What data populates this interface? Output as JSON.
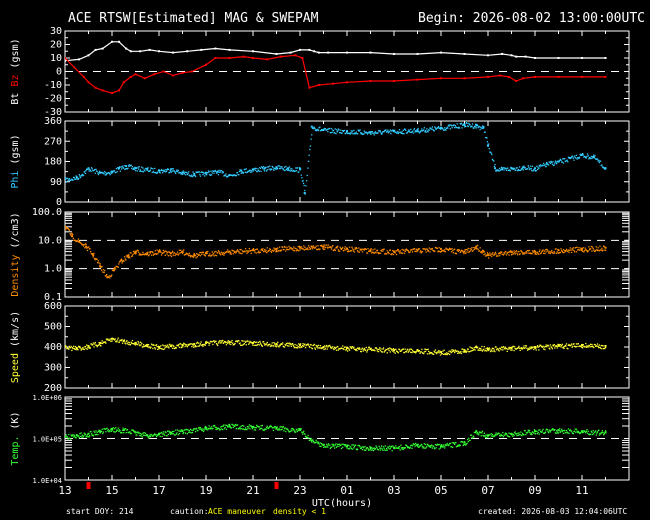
{
  "header": {
    "title": "ACE RTSW[Estimated] MAG & SWEPAM",
    "begin": "Begin: 2026-08-02 13:00:00UTC"
  },
  "footer": {
    "start_doy": "start DOY: 214",
    "caution": "caution:",
    "maneuver": "ACE maneuver",
    "density_note": "density < 1",
    "created": "created: 2026-08-03 12:04:06UTC"
  },
  "colors": {
    "background": "#000000",
    "axes": "#ffffff",
    "bt": "#ffffff",
    "bz": "#ff0000",
    "phi": "#33ccff",
    "density": "#ff8c00",
    "speed": "#ffff33",
    "temp": "#33ff33"
  },
  "chart_data": [
    {
      "type": "line",
      "panel": "mag_b",
      "ylabel_parts": [
        "Bt",
        "Bz",
        "(gsm)"
      ],
      "ylim": [
        -30,
        30
      ],
      "yticks": [
        -30,
        -20,
        -10,
        0,
        10,
        20,
        30
      ],
      "ytick_labels": [
        "-30",
        "-20",
        "-10",
        "0",
        "10",
        "20",
        "30"
      ],
      "dashed_lines": [
        0
      ],
      "series": [
        {
          "name": "Bt",
          "color": "#ffffff",
          "x": [
            0.0,
            0.6,
            1.0,
            1.3,
            1.6,
            2.0,
            2.3,
            2.6,
            2.8,
            3.2,
            3.6,
            4.0,
            4.6,
            5.2,
            5.8,
            6.4,
            7.0,
            8.0,
            9.0,
            9.6,
            10.0,
            10.4,
            10.6,
            10.8,
            11.2,
            12.0,
            13.0,
            14.0,
            15.0,
            16.0,
            17.0,
            18.0,
            18.6,
            19.0,
            19.2,
            19.6,
            20.0,
            21.0,
            22.0,
            23.0
          ],
          "y": [
            8,
            9,
            12,
            16,
            17,
            22,
            22,
            17,
            15,
            15,
            16,
            15,
            14,
            15,
            16,
            17,
            16,
            15,
            13,
            14,
            16,
            16,
            15,
            14,
            14,
            14,
            14,
            13,
            13,
            14,
            13,
            12,
            13,
            12,
            11,
            11,
            10,
            10,
            10,
            10
          ]
        },
        {
          "name": "Bz",
          "color": "#ff0000",
          "x": [
            0.0,
            0.4,
            0.8,
            1.0,
            1.3,
            1.6,
            2.0,
            2.3,
            2.5,
            2.8,
            3.0,
            3.4,
            3.8,
            4.2,
            4.6,
            5.0,
            5.4,
            6.0,
            6.4,
            7.0,
            7.6,
            8.0,
            8.6,
            9.2,
            9.8,
            10.1,
            10.4,
            10.8,
            11.4,
            12.0,
            13.0,
            14.0,
            15.0,
            16.0,
            17.0,
            18.0,
            18.5,
            18.9,
            19.2,
            19.5,
            20.0,
            21.0,
            22.0,
            23.0
          ],
          "y": [
            10,
            3,
            -4,
            -8,
            -12,
            -14,
            -16,
            -14,
            -8,
            -4,
            -2,
            -5,
            -2,
            0,
            -3,
            -1,
            0,
            5,
            10,
            10,
            11,
            10,
            9,
            11,
            12,
            10,
            -12,
            -10,
            -9,
            -8,
            -7,
            -7,
            -6,
            -5,
            -5,
            -4,
            -3,
            -4,
            -7,
            -5,
            -4,
            -4,
            -4,
            -4
          ]
        }
      ]
    },
    {
      "type": "scatter",
      "panel": "phi",
      "ylabel_parts": [
        "Phi",
        "(gsm)"
      ],
      "ylim": [
        0,
        360
      ],
      "yticks": [
        0,
        90,
        180,
        270,
        360
      ],
      "ytick_labels": [
        "0",
        "90",
        "180",
        "270",
        "360"
      ],
      "series": [
        {
          "name": "Phi",
          "color": "#33ccff",
          "x": [
            0.0,
            0.5,
            1.0,
            1.5,
            2.0,
            2.3,
            2.6,
            3.0,
            3.5,
            4.0,
            4.5,
            5.0,
            5.5,
            6.0,
            6.5,
            7.0,
            7.5,
            8.0,
            8.5,
            9.0,
            9.5,
            10.0,
            10.2,
            10.5,
            11.0,
            12.0,
            13.0,
            14.0,
            15.0,
            16.0,
            17.0,
            17.5,
            17.8,
            18.0,
            18.3,
            18.6,
            19.0,
            19.5,
            20.0,
            20.5,
            21.0,
            21.5,
            22.0,
            22.5,
            23.0
          ],
          "y": [
            100,
            110,
            150,
            130,
            135,
            150,
            160,
            150,
            145,
            140,
            145,
            130,
            125,
            130,
            135,
            120,
            140,
            145,
            150,
            155,
            150,
            145,
            40,
            335,
            320,
            315,
            310,
            315,
            320,
            330,
            345,
            340,
            330,
            250,
            150,
            145,
            150,
            155,
            150,
            170,
            180,
            195,
            210,
            200,
            150
          ]
        }
      ]
    },
    {
      "type": "scatter",
      "panel": "density",
      "ylabel_parts": [
        "Density",
        "(/cm3)"
      ],
      "yscale": "log",
      "ylim": [
        0.1,
        100
      ],
      "yticks": [
        0.1,
        1,
        10,
        100
      ],
      "ytick_labels": [
        "0.1",
        "1.0",
        "10.0",
        "100.0"
      ],
      "dashed_lines": [
        1,
        10
      ],
      "series": [
        {
          "name": "Density",
          "color": "#ff8c00",
          "x": [
            0.0,
            0.3,
            0.6,
            0.9,
            1.2,
            1.5,
            1.8,
            2.1,
            2.4,
            2.7,
            3.0,
            3.5,
            4.0,
            4.5,
            5.0,
            5.5,
            6.0,
            7.0,
            8.0,
            9.0,
            10.0,
            10.5,
            11.0,
            12.0,
            13.0,
            14.0,
            15.0,
            16.0,
            17.0,
            17.5,
            17.8,
            18.0,
            18.5,
            19.0,
            20.0,
            21.0,
            22.0,
            23.0
          ],
          "y": [
            30,
            14,
            9,
            6,
            3,
            1.2,
            0.5,
            1.0,
            2,
            3,
            4,
            3.5,
            4,
            3.5,
            4,
            3,
            3.5,
            4,
            4.5,
            5,
            5.5,
            6,
            6,
            5,
            4.5,
            4,
            4.5,
            5,
            4,
            6,
            4,
            3,
            3.5,
            4,
            4,
            4.5,
            5,
            5.5
          ]
        }
      ]
    },
    {
      "type": "scatter",
      "panel": "speed",
      "ylabel_parts": [
        "Speed",
        "(km/s)"
      ],
      "ylim": [
        200,
        600
      ],
      "yticks": [
        200,
        300,
        400,
        500,
        600
      ],
      "ytick_labels": [
        "200",
        "300",
        "400",
        "500",
        "600"
      ],
      "series": [
        {
          "name": "Speed",
          "color": "#ffff33",
          "x": [
            0.0,
            0.5,
            1.0,
            1.5,
            2.0,
            2.5,
            3.0,
            3.5,
            4.0,
            4.5,
            5.0,
            5.5,
            6.0,
            7.0,
            8.0,
            9.0,
            10.0,
            11.0,
            12.0,
            13.0,
            14.0,
            15.0,
            16.0,
            17.0,
            17.5,
            18.0,
            19.0,
            20.0,
            21.0,
            22.0,
            23.0
          ],
          "y": [
            400,
            395,
            405,
            420,
            440,
            430,
            420,
            410,
            400,
            405,
            410,
            415,
            420,
            425,
            420,
            415,
            410,
            400,
            395,
            390,
            385,
            385,
            375,
            385,
            400,
            390,
            395,
            400,
            405,
            410,
            405
          ]
        }
      ]
    },
    {
      "type": "scatter",
      "panel": "temp",
      "ylabel_parts": [
        "Temp.",
        "(K)"
      ],
      "yscale": "log",
      "ylim": [
        10000,
        1000000
      ],
      "yticks": [
        10000,
        100000,
        1000000
      ],
      "ytick_labels": [
        "1.0E+04",
        "1.0E+05",
        "1.0E+06"
      ],
      "dashed_lines": [
        100000
      ],
      "series": [
        {
          "name": "Temp.",
          "color": "#33ff33",
          "x": [
            0.0,
            0.5,
            1.0,
            1.5,
            2.0,
            2.5,
            3.0,
            3.5,
            4.0,
            4.5,
            5.0,
            6.0,
            7.0,
            8.0,
            9.0,
            10.0,
            10.5,
            11.0,
            12.0,
            13.0,
            14.0,
            15.0,
            16.0,
            17.0,
            17.5,
            18.0,
            19.0,
            20.0,
            21.0,
            22.0,
            23.0
          ],
          "y": [
            110000,
            120000,
            130000,
            150000,
            170000,
            160000,
            140000,
            120000,
            130000,
            140000,
            150000,
            180000,
            200000,
            190000,
            180000,
            160000,
            90000,
            70000,
            65000,
            60000,
            60000,
            70000,
            65000,
            80000,
            150000,
            120000,
            130000,
            150000,
            160000,
            150000,
            140000
          ]
        }
      ]
    }
  ],
  "x_axis": {
    "range_hours": [
      0,
      24
    ],
    "tick_values": [
      0,
      2,
      4,
      6,
      8,
      10,
      12,
      14,
      16,
      18,
      20,
      22
    ],
    "tick_labels": [
      "13",
      "15",
      "17",
      "19",
      "21",
      "23",
      "01",
      "03",
      "05",
      "07",
      "09",
      "11"
    ],
    "xlabel": "UTC(hours)",
    "highlighted_ticks": [
      1,
      9
    ]
  }
}
